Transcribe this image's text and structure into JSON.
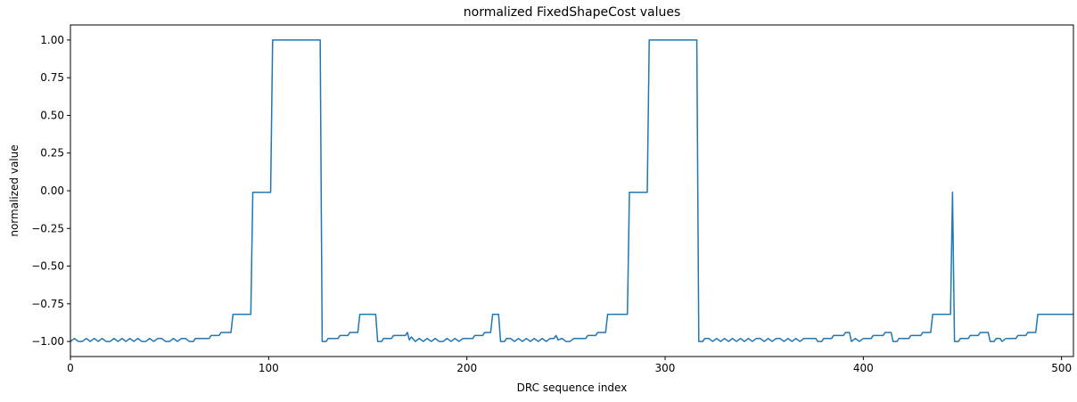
{
  "chart_data": {
    "type": "line",
    "title": "normalized FixedShapeCost values",
    "xlabel": "DRC sequence index",
    "ylabel": "normalized value",
    "xlim": [
      0,
      506
    ],
    "ylim": [
      -1.1,
      1.1
    ],
    "xticks": [
      0,
      100,
      200,
      300,
      400,
      500
    ],
    "yticks": [
      1.0,
      0.75,
      0.5,
      0.25,
      0.0,
      -0.25,
      -0.5,
      -0.75,
      -1.0
    ],
    "ytick_labels": [
      "1.00",
      "0.75",
      "0.50",
      "0.25",
      "0.00",
      "−0.25",
      "−0.50",
      "−0.75",
      "−1.00"
    ],
    "grid": false,
    "line_color": "#1f77b4",
    "series": [
      {
        "points": [
          [
            0,
            -1.0
          ],
          [
            2,
            -0.98
          ],
          [
            4,
            -1.0
          ],
          [
            6,
            -1.0
          ],
          [
            8,
            -0.98
          ],
          [
            10,
            -1.0
          ],
          [
            12,
            -0.98
          ],
          [
            14,
            -1.0
          ],
          [
            16,
            -0.98
          ],
          [
            18,
            -1.0
          ],
          [
            20,
            -1.0
          ],
          [
            22,
            -0.98
          ],
          [
            24,
            -1.0
          ],
          [
            26,
            -0.98
          ],
          [
            28,
            -1.0
          ],
          [
            30,
            -0.98
          ],
          [
            32,
            -1.0
          ],
          [
            34,
            -0.98
          ],
          [
            36,
            -1.0
          ],
          [
            38,
            -1.0
          ],
          [
            40,
            -0.98
          ],
          [
            42,
            -1.0
          ],
          [
            44,
            -0.98
          ],
          [
            46,
            -0.98
          ],
          [
            48,
            -1.0
          ],
          [
            50,
            -1.0
          ],
          [
            52,
            -0.98
          ],
          [
            54,
            -1.0
          ],
          [
            56,
            -0.98
          ],
          [
            58,
            -0.98
          ],
          [
            60,
            -1.0
          ],
          [
            62,
            -1.0
          ],
          [
            63,
            -0.98
          ],
          [
            70,
            -0.98
          ],
          [
            71,
            -0.96
          ],
          [
            75,
            -0.96
          ],
          [
            76,
            -0.94
          ],
          [
            81,
            -0.94
          ],
          [
            82,
            -0.82
          ],
          [
            91,
            -0.82
          ],
          [
            92,
            -0.01
          ],
          [
            101,
            -0.01
          ],
          [
            102,
            1.0
          ],
          [
            126,
            1.0
          ],
          [
            127,
            -1.0
          ],
          [
            129,
            -1.0
          ],
          [
            130,
            -0.98
          ],
          [
            135,
            -0.98
          ],
          [
            136,
            -0.96
          ],
          [
            140,
            -0.96
          ],
          [
            141,
            -0.94
          ],
          [
            145,
            -0.94
          ],
          [
            146,
            -0.82
          ],
          [
            154,
            -0.82
          ],
          [
            155,
            -1.0
          ],
          [
            157,
            -1.0
          ],
          [
            158,
            -0.98
          ],
          [
            162,
            -0.98
          ],
          [
            163,
            -0.96
          ],
          [
            169,
            -0.96
          ],
          [
            170,
            -0.94
          ],
          [
            171,
            -0.99
          ],
          [
            172,
            -0.97
          ],
          [
            174,
            -1.0
          ],
          [
            176,
            -0.98
          ],
          [
            178,
            -1.0
          ],
          [
            180,
            -0.98
          ],
          [
            182,
            -1.0
          ],
          [
            184,
            -0.98
          ],
          [
            186,
            -1.0
          ],
          [
            188,
            -1.0
          ],
          [
            190,
            -0.98
          ],
          [
            192,
            -1.0
          ],
          [
            194,
            -0.98
          ],
          [
            196,
            -1.0
          ],
          [
            198,
            -0.98
          ],
          [
            203,
            -0.98
          ],
          [
            204,
            -0.96
          ],
          [
            208,
            -0.96
          ],
          [
            209,
            -0.94
          ],
          [
            212,
            -0.94
          ],
          [
            213,
            -0.82
          ],
          [
            216,
            -0.82
          ],
          [
            217,
            -1.0
          ],
          [
            219,
            -1.0
          ],
          [
            220,
            -0.98
          ],
          [
            222,
            -0.98
          ],
          [
            224,
            -1.0
          ],
          [
            226,
            -0.98
          ],
          [
            228,
            -1.0
          ],
          [
            230,
            -0.98
          ],
          [
            232,
            -1.0
          ],
          [
            234,
            -0.98
          ],
          [
            236,
            -1.0
          ],
          [
            238,
            -0.98
          ],
          [
            240,
            -1.0
          ],
          [
            242,
            -0.98
          ],
          [
            244,
            -0.98
          ],
          [
            245,
            -0.96
          ],
          [
            246,
            -0.99
          ],
          [
            248,
            -0.98
          ],
          [
            250,
            -1.0
          ],
          [
            252,
            -1.0
          ],
          [
            254,
            -0.98
          ],
          [
            260,
            -0.98
          ],
          [
            261,
            -0.96
          ],
          [
            265,
            -0.96
          ],
          [
            266,
            -0.94
          ],
          [
            270,
            -0.94
          ],
          [
            271,
            -0.82
          ],
          [
            281,
            -0.82
          ],
          [
            282,
            -0.01
          ],
          [
            291,
            -0.01
          ],
          [
            292,
            1.0
          ],
          [
            316,
            1.0
          ],
          [
            317,
            -1.0
          ],
          [
            319,
            -1.0
          ],
          [
            320,
            -0.98
          ],
          [
            322,
            -0.98
          ],
          [
            324,
            -1.0
          ],
          [
            326,
            -0.98
          ],
          [
            328,
            -1.0
          ],
          [
            330,
            -0.98
          ],
          [
            332,
            -1.0
          ],
          [
            334,
            -0.98
          ],
          [
            336,
            -1.0
          ],
          [
            338,
            -0.98
          ],
          [
            340,
            -1.0
          ],
          [
            342,
            -0.98
          ],
          [
            344,
            -1.0
          ],
          [
            346,
            -0.98
          ],
          [
            348,
            -0.98
          ],
          [
            350,
            -1.0
          ],
          [
            352,
            -0.98
          ],
          [
            354,
            -1.0
          ],
          [
            356,
            -0.98
          ],
          [
            358,
            -0.98
          ],
          [
            360,
            -1.0
          ],
          [
            362,
            -0.98
          ],
          [
            364,
            -1.0
          ],
          [
            366,
            -0.98
          ],
          [
            368,
            -1.0
          ],
          [
            370,
            -0.98
          ],
          [
            376,
            -0.98
          ],
          [
            377,
            -1.0
          ],
          [
            379,
            -1.0
          ],
          [
            380,
            -0.98
          ],
          [
            384,
            -0.98
          ],
          [
            385,
            -0.96
          ],
          [
            390,
            -0.96
          ],
          [
            391,
            -0.94
          ],
          [
            393,
            -0.94
          ],
          [
            394,
            -1.0
          ],
          [
            396,
            -0.98
          ],
          [
            398,
            -1.0
          ],
          [
            400,
            -0.98
          ],
          [
            404,
            -0.98
          ],
          [
            405,
            -0.96
          ],
          [
            410,
            -0.96
          ],
          [
            411,
            -0.94
          ],
          [
            414,
            -0.94
          ],
          [
            415,
            -1.0
          ],
          [
            417,
            -1.0
          ],
          [
            418,
            -0.98
          ],
          [
            423,
            -0.98
          ],
          [
            424,
            -0.96
          ],
          [
            429,
            -0.96
          ],
          [
            430,
            -0.94
          ],
          [
            434,
            -0.94
          ],
          [
            435,
            -0.82
          ],
          [
            444,
            -0.82
          ],
          [
            445,
            -0.01
          ],
          [
            446,
            -1.0
          ],
          [
            448,
            -1.0
          ],
          [
            449,
            -0.98
          ],
          [
            453,
            -0.98
          ],
          [
            454,
            -0.96
          ],
          [
            458,
            -0.96
          ],
          [
            459,
            -0.94
          ],
          [
            463,
            -0.94
          ],
          [
            464,
            -1.0
          ],
          [
            466,
            -1.0
          ],
          [
            467,
            -0.98
          ],
          [
            469,
            -0.98
          ],
          [
            470,
            -1.0
          ],
          [
            472,
            -0.98
          ],
          [
            477,
            -0.98
          ],
          [
            478,
            -0.96
          ],
          [
            482,
            -0.96
          ],
          [
            483,
            -0.94
          ],
          [
            487,
            -0.94
          ],
          [
            488,
            -0.82
          ],
          [
            506,
            -0.82
          ]
        ]
      }
    ]
  }
}
